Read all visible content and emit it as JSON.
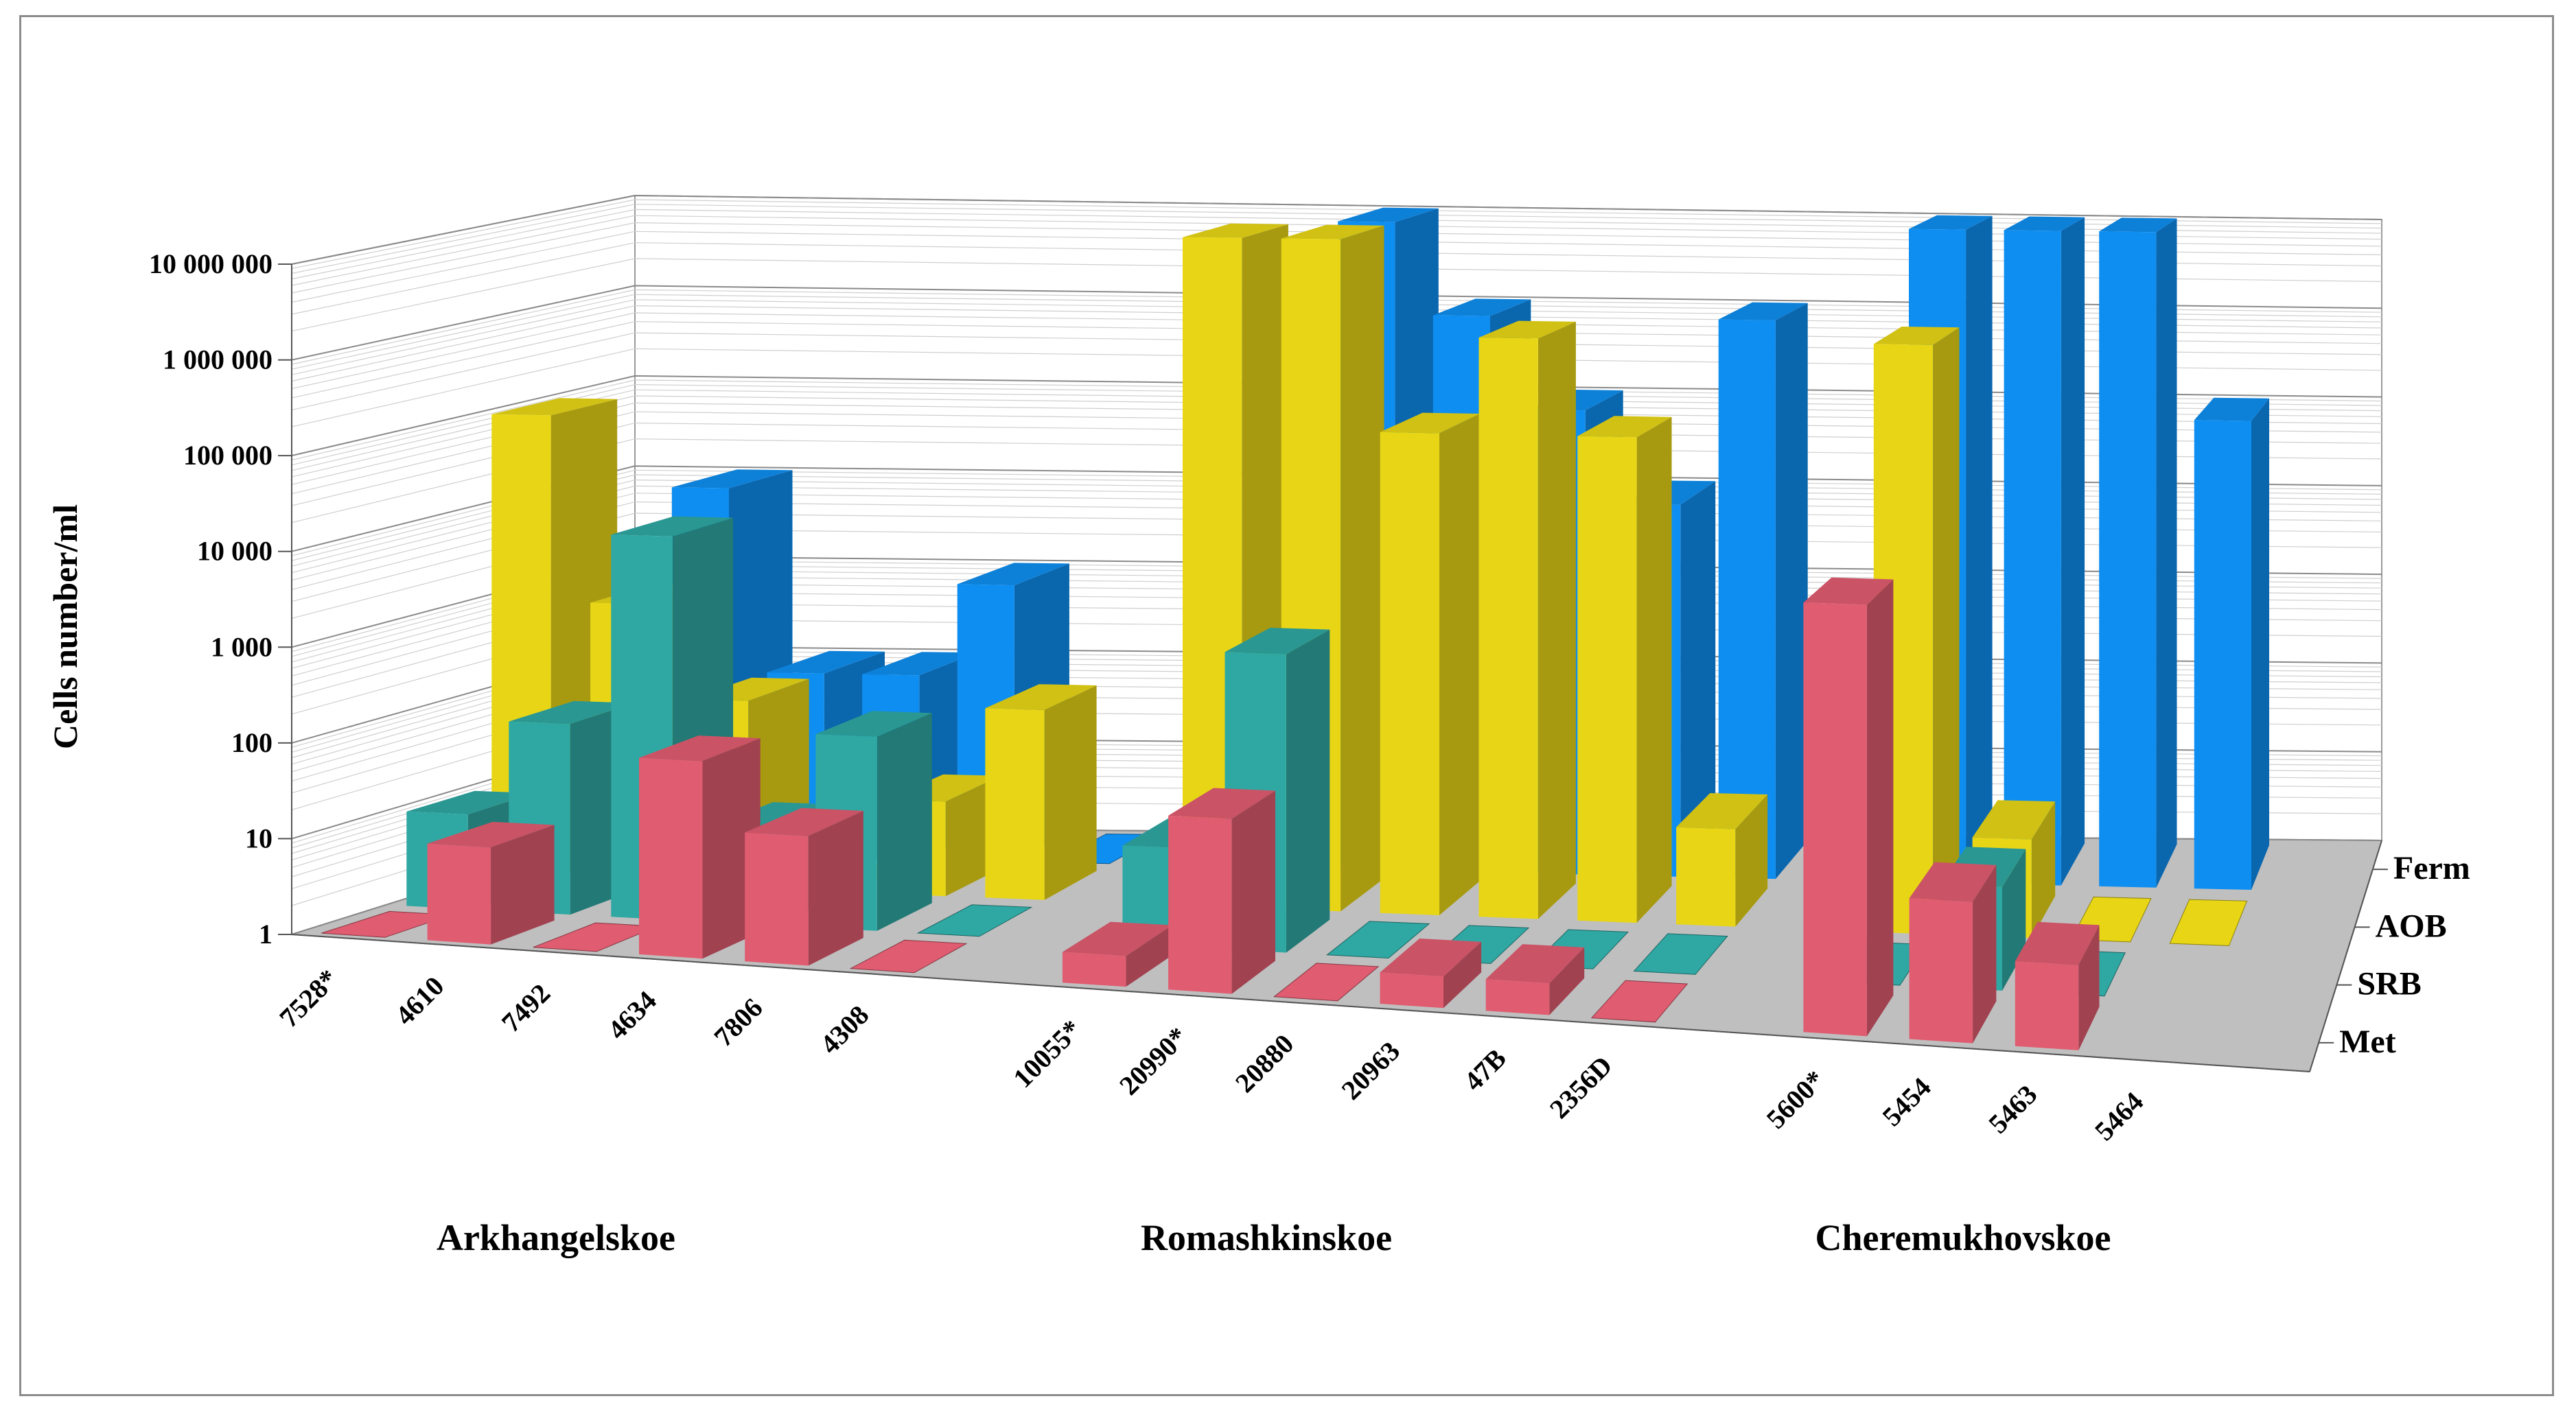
{
  "chart_data": {
    "type": "bar",
    "subtype": "3d-clustered-column",
    "title": "",
    "ylabel": "Cells number/ml",
    "xlabel": "",
    "yscale": "log",
    "ylim": [
      1,
      10000000
    ],
    "grid": true,
    "y_tick_labels": [
      "1",
      "10",
      "100",
      "1 000",
      "10 000",
      "100 000",
      "1 000 000",
      "10 000 000"
    ],
    "groups": [
      {
        "name": "Arkhangelskoe",
        "categories": [
          "7528*",
          "4610",
          "7492",
          "4634",
          "7806",
          "4308"
        ]
      },
      {
        "name": "Romashkinskoe",
        "categories": [
          "10055*",
          "20990*",
          "20880",
          "20963",
          "47B",
          "2356D"
        ]
      },
      {
        "name": "Cheremukhovskoe",
        "categories": [
          "5600*",
          "5454",
          "5463",
          "5464"
        ]
      }
    ],
    "categories": [
      "7528*",
      "4610",
      "7492",
      "4634",
      "7806",
      "4308",
      "10055*",
      "20990*",
      "20880",
      "20963",
      "47B",
      "2356D",
      "5600*",
      "5454",
      "5463",
      "5464"
    ],
    "series": [
      {
        "name": "Met",
        "color": "#E05C70",
        "values": [
          1,
          10,
          1,
          100,
          20,
          1,
          2,
          50,
          1,
          2,
          2,
          1,
          10000,
          20,
          6,
          null
        ]
      },
      {
        "name": "SRB",
        "color": "#2FA8A3",
        "values": [
          10,
          100,
          10000,
          10,
          100,
          1,
          10,
          1000,
          1,
          1,
          1,
          1,
          1,
          10,
          1,
          null
        ]
      },
      {
        "name": "AOB",
        "color": "#E8D616",
        "values": [
          100000,
          1000,
          100,
          1,
          10,
          100,
          10000000,
          10000000,
          100000,
          1000000,
          100000,
          10,
          1000000,
          10,
          1,
          1
        ]
      },
      {
        "name": "Ferm",
        "color": "#0E8EF0",
        "values": [
          null,
          10000,
          100,
          100,
          1000,
          1,
          10,
          10000000,
          1000000,
          100000,
          10000,
          1000000,
          10000000,
          10000000,
          10000000,
          100000
        ]
      }
    ],
    "legend_position": "right (depth axis labels)"
  }
}
